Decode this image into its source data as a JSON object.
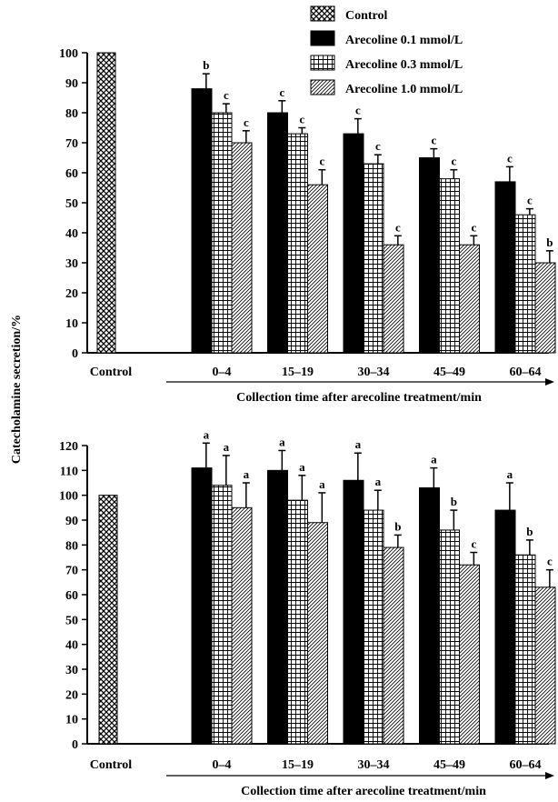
{
  "figure": {
    "ylabel": "Catecholamine secretion/%",
    "legend": [
      "Control",
      "Arecoline 0.1 mmol/L",
      "Arecoline 0.3 mmol/L",
      "Arecoline 1.0 mmol/L"
    ],
    "colors": {
      "black": "#000000",
      "white": "#ffffff"
    }
  },
  "chart_data": [
    {
      "type": "bar",
      "panel": "top",
      "control_label": "Control",
      "control_value": 100,
      "categories": [
        "0–4",
        "15–19",
        "30–34",
        "45–49",
        "60–64"
      ],
      "xlabel": "Collection time after arecoline treatment/min",
      "ylim": [
        0,
        100
      ],
      "yticks": [
        0,
        10,
        20,
        30,
        40,
        50,
        60,
        70,
        80,
        90,
        100
      ],
      "grid": false,
      "legend_position": "top-right",
      "series": [
        {
          "name": "Arecoline 0.1 mmol/L",
          "pattern": "solid-black",
          "values": [
            88,
            80,
            73,
            65,
            57
          ],
          "errors": [
            5,
            4,
            5,
            3,
            5
          ],
          "labels": [
            "b",
            "c",
            "c",
            "c",
            "c"
          ]
        },
        {
          "name": "Arecoline 0.3 mmol/L",
          "pattern": "grid",
          "values": [
            80,
            73,
            63,
            58,
            46
          ],
          "errors": [
            3,
            2,
            3,
            3,
            2
          ],
          "labels": [
            "c",
            "c",
            "c",
            "c",
            "c"
          ]
        },
        {
          "name": "Arecoline 1.0 mmol/L",
          "pattern": "diagonal",
          "values": [
            70,
            56,
            36,
            36,
            30
          ],
          "errors": [
            4,
            5,
            3,
            3,
            4
          ],
          "labels": [
            "c",
            "c",
            "c",
            "c",
            "b"
          ]
        }
      ]
    },
    {
      "type": "bar",
      "panel": "bottom",
      "control_label": "Control",
      "control_value": 100,
      "categories": [
        "0–4",
        "15–19",
        "30–34",
        "45–49",
        "60–64"
      ],
      "xlabel": "Collection time after arecoline treatment/min",
      "ylim": [
        0,
        120
      ],
      "yticks": [
        0,
        10,
        20,
        30,
        40,
        50,
        60,
        70,
        80,
        90,
        100,
        110,
        120
      ],
      "grid": false,
      "series": [
        {
          "name": "Arecoline 0.1 mmol/L",
          "pattern": "solid-black",
          "values": [
            111,
            110,
            106,
            103,
            94
          ],
          "errors": [
            10,
            8,
            11,
            8,
            11
          ],
          "labels": [
            "a",
            "a",
            "a",
            "a",
            "a"
          ]
        },
        {
          "name": "Arecoline 0.3 mmol/L",
          "pattern": "grid",
          "values": [
            104,
            98,
            94,
            86,
            76
          ],
          "errors": [
            12,
            10,
            8,
            8,
            6
          ],
          "labels": [
            "a",
            "a",
            "a",
            "b",
            "b"
          ]
        },
        {
          "name": "Arecoline 1.0 mmol/L",
          "pattern": "diagonal",
          "values": [
            95,
            89,
            79,
            72,
            63
          ],
          "errors": [
            10,
            12,
            5,
            5,
            7
          ],
          "labels": [
            "a",
            "a",
            "b",
            "c",
            "c"
          ]
        }
      ]
    }
  ]
}
